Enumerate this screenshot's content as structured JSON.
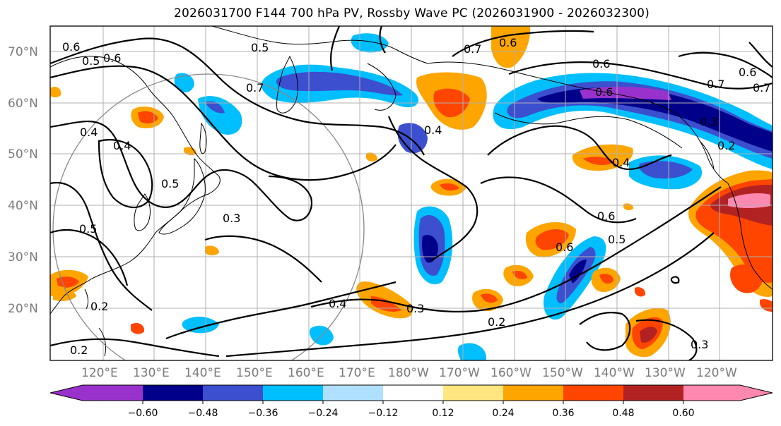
{
  "title": "2026031700 F144 700 hPa PV, Rossby Wave PC (2026031900 - 2026032300)",
  "map": {
    "lat_labels": [
      "70°N",
      "60°N",
      "50°N",
      "40°N",
      "30°N",
      "20°N"
    ],
    "lon_labels": [
      "120°E",
      "130°E",
      "140°E",
      "150°E",
      "160°E",
      "170°E",
      "180°W",
      "170°W",
      "160°W",
      "150°W",
      "140°W",
      "130°W",
      "120°W"
    ],
    "contour_labels": [
      "0.6",
      "0.5",
      "0.6",
      "0.7",
      "0.5",
      "0.4",
      "0.4",
      "0.4",
      "0.5",
      "0.5",
      "0.3",
      "0.7",
      "0.6",
      "0.6",
      "0.6",
      "0.7",
      "0.6",
      "0.2",
      "0.4",
      "0.6",
      "0.5",
      "0.6",
      "0.4",
      "0.3",
      "0.2",
      "0.3",
      "0.2",
      "0.2",
      "0.7",
      "0.3"
    ]
  },
  "colorbar": {
    "ticks": [
      "−0.60",
      "−0.48",
      "−0.36",
      "−0.24",
      "−0.12",
      "0.12",
      "0.24",
      "0.36",
      "0.48",
      "0.60"
    ],
    "colors": [
      "#9932cc",
      "#00008b",
      "#3b4fcf",
      "#00bfff",
      "#b0e0ff",
      "#ffffff",
      "#ffe680",
      "#ffa500",
      "#ff4500",
      "#b22222",
      "#ff88b0"
    ]
  }
}
